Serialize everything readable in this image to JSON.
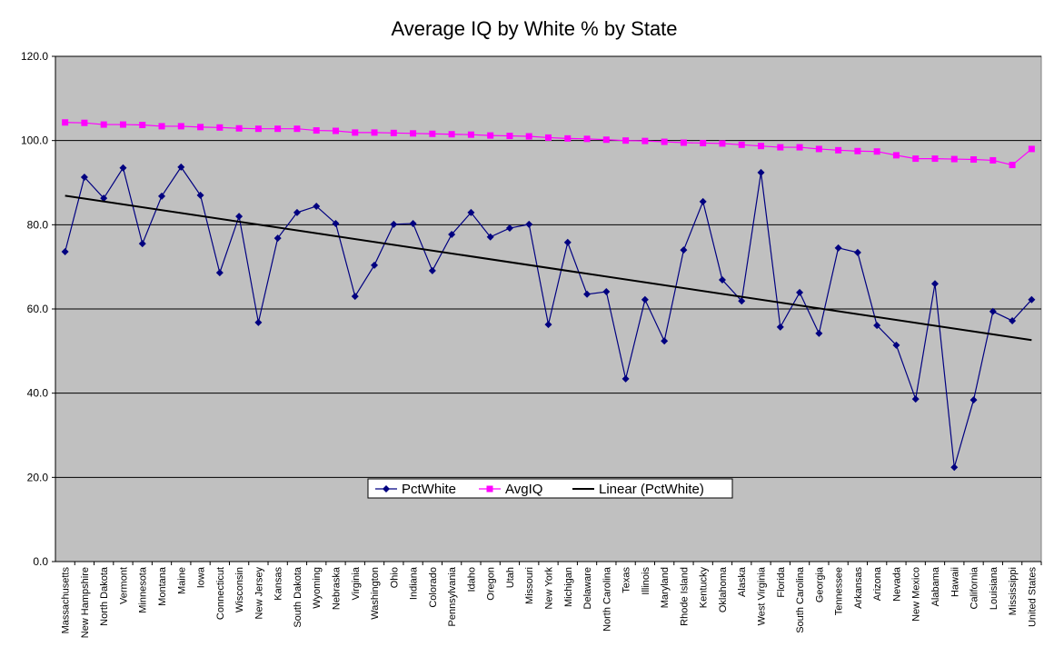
{
  "chart_data": {
    "type": "line",
    "title": "Average IQ by White % by State",
    "categories": [
      "Massachusetts",
      "New Hampshire",
      "North Dakota",
      "Vermont",
      "Minnesota",
      "Montana",
      "Maine",
      "Iowa",
      "Connecticut",
      "Wisconsin",
      "New Jersey",
      "Kansas",
      "South Dakota",
      "Wyoming",
      "Nebraska",
      "Virginia",
      "Washington",
      "Ohio",
      "Indiana",
      "Colorado",
      "Pennsylvania",
      "Idaho",
      "Oregon",
      "Utah",
      "Missouri",
      "New York",
      "Michigan",
      "Delaware",
      "North Carolina",
      "Texas",
      "Illinois",
      "Maryland",
      "Rhode Island",
      "Kentucky",
      "Oklahoma",
      "Alaska",
      "West Virginia",
      "Florida",
      "South Carolina",
      "Georgia",
      "Tennessee",
      "Arkansas",
      "Arizona",
      "Nevada",
      "New Mexico",
      "Alabama",
      "Hawaii",
      "California",
      "Louisiana",
      "Mississippi",
      "United States"
    ],
    "series": [
      {
        "name": "PctWhite",
        "color": "#000080",
        "marker": "diamond",
        "values": [
          73.6,
          91.3,
          86.3,
          93.5,
          75.5,
          86.8,
          93.7,
          87.0,
          68.6,
          82.0,
          56.8,
          76.8,
          82.9,
          84.4,
          80.3,
          63.0,
          70.4,
          80.1,
          80.3,
          69.1,
          77.7,
          82.9,
          77.1,
          79.2,
          80.1,
          56.3,
          75.8,
          63.5,
          64.1,
          43.4,
          62.2,
          52.4,
          74.0,
          85.5,
          66.9,
          61.9,
          92.4,
          55.7,
          63.9,
          54.2,
          74.5,
          73.4,
          56.1,
          51.4,
          38.6,
          66.0,
          22.4,
          38.4,
          59.4,
          57.2,
          62.2
        ]
      },
      {
        "name": "AvgIQ",
        "color": "#ff00ff",
        "marker": "square",
        "values": [
          104.3,
          104.2,
          103.8,
          103.8,
          103.7,
          103.4,
          103.4,
          103.2,
          103.1,
          102.9,
          102.8,
          102.8,
          102.8,
          102.4,
          102.3,
          101.9,
          101.9,
          101.8,
          101.7,
          101.6,
          101.5,
          101.4,
          101.2,
          101.1,
          101.0,
          100.7,
          100.5,
          100.4,
          100.2,
          100.0,
          99.9,
          99.7,
          99.5,
          99.4,
          99.3,
          99.0,
          98.7,
          98.4,
          98.4,
          98.0,
          97.7,
          97.5,
          97.4,
          96.5,
          95.7,
          95.7,
          95.6,
          95.5,
          95.3,
          94.2,
          98.0
        ]
      }
    ],
    "trendline": {
      "name": "Linear (PctWhite)",
      "color": "#000000",
      "start": 86.9,
      "end": 52.6
    },
    "ylim": [
      0,
      120
    ],
    "yticks": [
      {
        "value": 0,
        "label": "0.0"
      },
      {
        "value": 20,
        "label": "20.0"
      },
      {
        "value": 40,
        "label": "40.0"
      },
      {
        "value": 60,
        "label": "60.0"
      },
      {
        "value": 80,
        "label": "80.0"
      },
      {
        "value": 100,
        "label": "100.0"
      },
      {
        "value": 120,
        "label": "120.0"
      }
    ],
    "grid": true,
    "legend": "bottom",
    "plot_background": "#c0c0c0"
  }
}
